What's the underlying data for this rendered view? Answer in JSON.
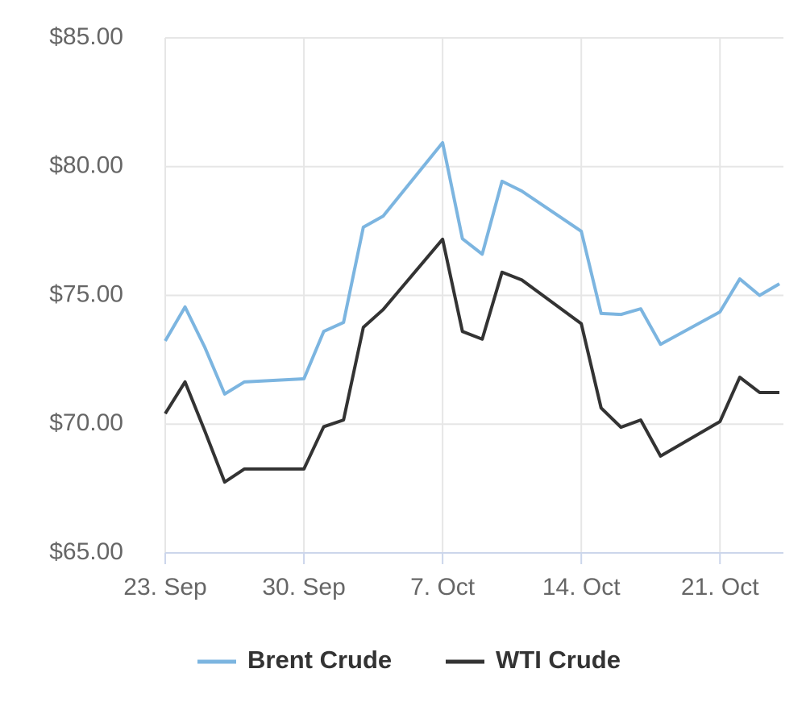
{
  "chart_data": {
    "type": "line",
    "x": [
      "23. Sep",
      "24. Sep",
      "25. Sep",
      "26. Sep",
      "27. Sep",
      "30. Sep",
      "1. Oct",
      "2. Oct",
      "3. Oct",
      "4. Oct",
      "7. Oct",
      "8. Oct",
      "9. Oct",
      "10. Oct",
      "11. Oct",
      "14. Oct",
      "15. Oct",
      "16. Oct",
      "17. Oct",
      "18. Oct",
      "21. Oct",
      "22. Oct",
      "23. Oct",
      "24. Oct"
    ],
    "series": [
      {
        "name": "Brent Crude",
        "color": "#7cb5e0",
        "values": [
          73.23,
          74.55,
          72.98,
          71.17,
          71.64,
          71.76,
          73.6,
          73.95,
          77.65,
          78.08,
          80.93,
          77.2,
          76.6,
          79.43,
          79.05,
          77.49,
          74.3,
          74.26,
          74.48,
          73.1,
          74.36,
          75.64,
          75.0,
          75.45
        ]
      },
      {
        "name": "WTI Crude",
        "color": "#333333",
        "values": [
          70.41,
          71.64,
          69.73,
          67.75,
          68.26,
          68.26,
          69.9,
          70.16,
          73.76,
          74.45,
          77.18,
          73.6,
          73.3,
          75.9,
          75.6,
          73.9,
          70.63,
          69.88,
          70.16,
          68.76,
          70.1,
          71.82,
          71.23,
          71.23
        ]
      }
    ],
    "xlim": [
      "23. Sep",
      "24. Oct"
    ],
    "xticks": [
      "23. Sep",
      "30. Sep",
      "7. Oct",
      "14. Oct",
      "21. Oct"
    ],
    "ylim": [
      65,
      85
    ],
    "yticks": [
      {
        "value": 65,
        "label": "$65.00"
      },
      {
        "value": 70,
        "label": "$70.00"
      },
      {
        "value": 75,
        "label": "$75.00"
      },
      {
        "value": 80,
        "label": "$80.00"
      },
      {
        "value": 85,
        "label": "$85.00"
      }
    ],
    "grid": true,
    "legend": "bottom"
  }
}
